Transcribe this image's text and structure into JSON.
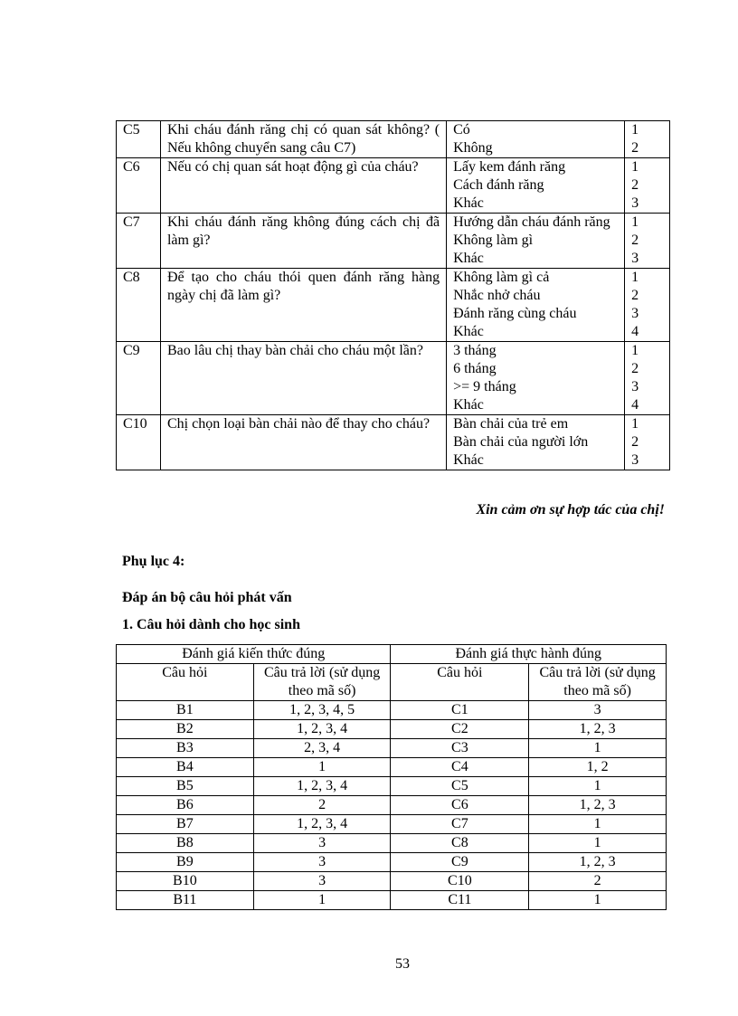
{
  "questionnaire": [
    {
      "code": "C5",
      "question": "Khi cháu đánh răng chị có quan sát không? ( Nếu không chuyển sang câu C7)",
      "answers": [
        "Có",
        "Không"
      ],
      "codes": [
        "1",
        "2"
      ]
    },
    {
      "code": "C6",
      "question": "Nếu có chị quan sát hoạt động gì của cháu?",
      "answers": [
        "Lấy kem đánh răng",
        "Cách đánh răng",
        "Khác"
      ],
      "codes": [
        "1",
        "2",
        "3"
      ]
    },
    {
      "code": "C7",
      "question": "Khi cháu đánh răng không đúng cách chị đã làm gì?",
      "answers": [
        "Hướng dẫn cháu đánh răng",
        "Không làm gì",
        "Khác"
      ],
      "codes": [
        "1",
        "2",
        "3"
      ]
    },
    {
      "code": "C8",
      "question": "Để tạo cho cháu thói quen đánh răng hàng ngày chị đã làm gì?",
      "answers": [
        "Không làm gì cả",
        "Nhắc nhở cháu",
        "Đánh răng cùng cháu",
        "Khác"
      ],
      "codes": [
        "1",
        "2",
        "3",
        "4"
      ]
    },
    {
      "code": "C9",
      "question": "Bao lâu chị thay bàn chải cho cháu một lần?",
      "answers": [
        "3 tháng",
        "6 tháng",
        ">= 9 tháng",
        "Khác"
      ],
      "codes": [
        "1",
        "2",
        "3",
        "4"
      ]
    },
    {
      "code": "C10",
      "question": "Chị chọn loại bàn chải nào để thay cho cháu?",
      "answers": [
        "Bàn chải của trẻ em",
        "Bàn chải của người lớn",
        "Khác"
      ],
      "codes": [
        "1",
        "2",
        "3"
      ]
    }
  ],
  "thanks": "Xin cảm ơn sự hợp tác của chị!",
  "appendix_title": "Phụ lục 4:",
  "section_title": "Đáp án bộ câu hỏi phát vấn",
  "subsection_title": "1. Câu hỏi dành cho học sinh",
  "answer_table": {
    "group_headers": [
      "Đánh giá kiến thức đúng",
      "Đánh giá thực hành đúng"
    ],
    "col_headers": [
      "Câu hỏi",
      "Câu trả lời (sử dụng theo mã số)",
      "Câu hỏi",
      "Câu trả lời (sử dụng theo mã số)"
    ],
    "rows": [
      [
        "B1",
        "1, 2, 3, 4, 5",
        "C1",
        "3"
      ],
      [
        "B2",
        "1, 2, 3, 4",
        "C2",
        "1, 2, 3"
      ],
      [
        "B3",
        "2, 3, 4",
        "C3",
        "1"
      ],
      [
        "B4",
        "1",
        "C4",
        "1, 2"
      ],
      [
        "B5",
        "1, 2, 3, 4",
        "C5",
        "1"
      ],
      [
        "B6",
        "2",
        "C6",
        "1, 2, 3"
      ],
      [
        "B7",
        "1, 2, 3, 4",
        "C7",
        "1"
      ],
      [
        "B8",
        "3",
        "C8",
        "1"
      ],
      [
        "B9",
        "3",
        "C9",
        "1, 2, 3"
      ],
      [
        "B10",
        "3",
        "C10",
        "2"
      ],
      [
        "B11",
        "1",
        "C11",
        "1"
      ]
    ]
  },
  "page_number": "53"
}
